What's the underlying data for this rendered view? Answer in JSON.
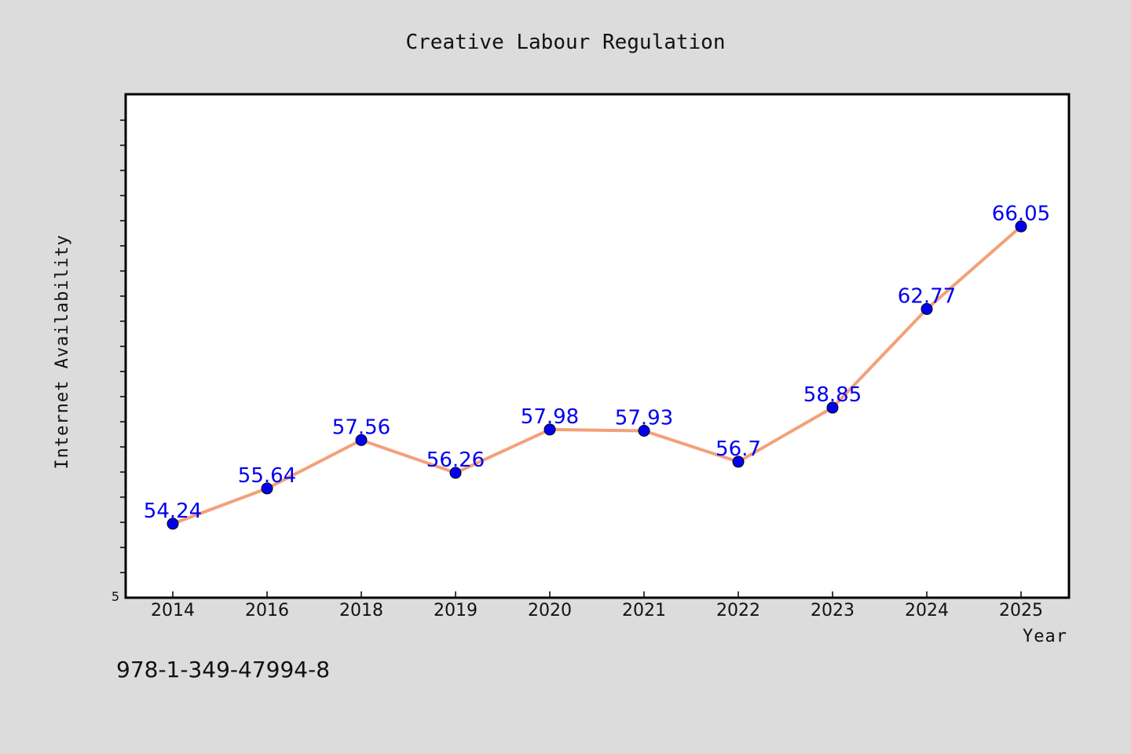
{
  "chart_data": {
    "type": "line",
    "title": "Creative Labour Regulation",
    "xlabel": "Year",
    "ylabel": "Internet Availability",
    "categories": [
      "2014",
      "2016",
      "2018",
      "2019",
      "2020",
      "2021",
      "2022",
      "2023",
      "2024",
      "2025"
    ],
    "series": [
      {
        "values": [
          54.24,
          55.64,
          57.56,
          56.26,
          57.98,
          57.93,
          56.7,
          58.85,
          62.77,
          66.05
        ],
        "line_color": "#f4a07a",
        "marker_color": "#0000ee"
      }
    ],
    "data_labels": [
      "54.24",
      "55.64",
      "57.56",
      "56.26",
      "57.98",
      "57.93",
      "56.7",
      "58.85",
      "62.77",
      "66.05"
    ],
    "y_tick_label": "5",
    "ylim": [
      51.3,
      71.3
    ],
    "grid": false,
    "legend": "none",
    "label_color": "#0000ee"
  },
  "footer": {
    "isbn": "978-1-349-47994-8"
  }
}
